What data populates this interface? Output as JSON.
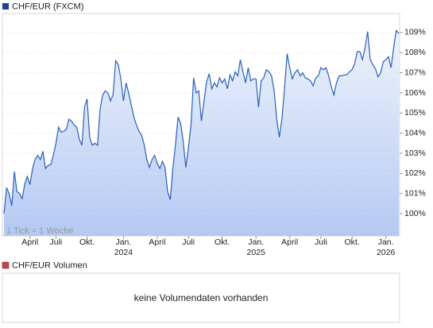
{
  "chart_data": {
    "type": "line",
    "legend": "CHF/EUR (FXCM)",
    "annotation": "1 Tick = 1 Woche",
    "color": "#2b5fb8",
    "values": [
      100.0,
      101.3,
      101.0,
      100.4,
      102.1,
      101.1,
      101.0,
      100.75,
      101.5,
      101.85,
      101.45,
      102.25,
      102.7,
      102.9,
      102.7,
      103.1,
      102.25,
      102.4,
      102.45,
      102.9,
      103.5,
      104.3,
      104.05,
      104.1,
      104.2,
      104.7,
      104.6,
      104.4,
      104.3,
      103.7,
      103.4,
      105.3,
      105.7,
      103.8,
      103.4,
      103.5,
      103.4,
      105.2,
      105.9,
      106.1,
      106.0,
      105.6,
      105.9,
      107.6,
      107.4,
      106.7,
      105.6,
      106.5,
      106.0,
      105.4,
      104.8,
      104.4,
      104.1,
      103.9,
      103.4,
      102.7,
      102.3,
      102.7,
      102.9,
      102.5,
      102.25,
      102.6,
      102.3,
      101.1,
      100.7,
      102.25,
      103.4,
      104.8,
      104.5,
      103.6,
      102.3,
      103.3,
      104.4,
      106.75,
      106.0,
      106.1,
      104.6,
      105.6,
      106.55,
      106.95,
      106.2,
      106.5,
      106.3,
      106.75,
      106.5,
      106.7,
      106.2,
      106.9,
      106.6,
      107.05,
      106.85,
      107.65,
      107.05,
      106.5,
      107.25,
      106.6,
      106.7,
      106.7,
      105.3,
      106.6,
      106.75,
      107.15,
      107.05,
      106.85,
      106.1,
      104.7,
      103.8,
      104.75,
      106.2,
      107.95,
      107.25,
      106.7,
      107.0,
      107.15,
      106.85,
      107.0,
      106.75,
      106.7,
      106.6,
      106.35,
      106.75,
      106.85,
      107.25,
      107.15,
      107.25,
      106.85,
      106.3,
      105.9,
      106.5,
      106.85,
      106.85,
      106.9,
      106.9,
      107.05,
      107.15,
      107.45,
      108.05,
      108.05,
      107.65,
      108.25,
      109.05,
      107.65,
      107.4,
      107.2,
      106.8,
      107.0,
      107.55,
      107.65,
      107.8,
      107.25,
      108.25,
      109.1,
      108.95
    ],
    "xlim": [
      0,
      152
    ],
    "xticks": [
      {
        "value": 10,
        "label": "April"
      },
      {
        "value": 20,
        "label": "Juli"
      },
      {
        "value": 32,
        "label": "Okt."
      },
      {
        "value": 46,
        "label": "Jan.",
        "year": "2024"
      },
      {
        "value": 59,
        "label": "April"
      },
      {
        "value": 71,
        "label": "Juli"
      },
      {
        "value": 84,
        "label": "Okt."
      },
      {
        "value": 97,
        "label": "Jan.",
        "year": "2025"
      },
      {
        "value": 110,
        "label": "April"
      },
      {
        "value": 122,
        "label": "Juli"
      },
      {
        "value": 134,
        "label": "Okt."
      },
      {
        "value": 147,
        "label": "Jan.",
        "year": "2026"
      }
    ],
    "ylim": [
      98.9,
      110.3
    ],
    "yticks": [
      {
        "value": 100,
        "label": "100%"
      },
      {
        "value": 101,
        "label": "101%"
      },
      {
        "value": 102,
        "label": "102%"
      },
      {
        "value": 103,
        "label": "103%"
      },
      {
        "value": 104,
        "label": "104%"
      },
      {
        "value": 105,
        "label": "105%"
      },
      {
        "value": 106,
        "label": "106%"
      },
      {
        "value": 107,
        "label": "107%"
      },
      {
        "value": 108,
        "label": "108%"
      },
      {
        "value": 109,
        "label": "109%"
      }
    ],
    "grid": true,
    "volume": {
      "legend": "CHF/EUR Volumen",
      "message": "keine Volumendaten vorhanden"
    }
  }
}
